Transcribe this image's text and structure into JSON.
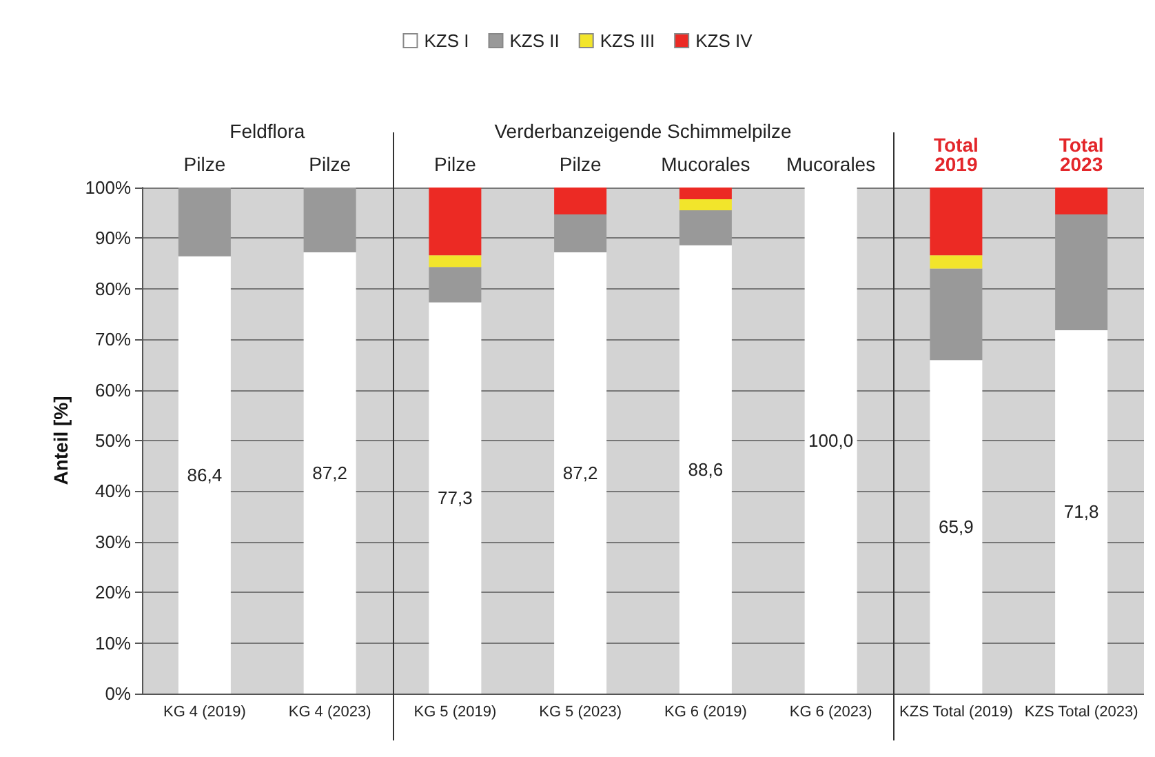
{
  "chart_data": {
    "type": "bar",
    "stacked": true,
    "categories": [
      "KG 4 (2019)",
      "KG 4 (2023)",
      "KG 5 (2019)",
      "KG 5 (2023)",
      "KG 6 (2019)",
      "KG 6 (2023)",
      "KZS Total (2019)",
      "KZS Total (2023)"
    ],
    "series": [
      {
        "name": "KZS I",
        "color": "#ffffff",
        "values": [
          86.4,
          87.2,
          77.3,
          87.2,
          88.6,
          100.0,
          65.9,
          71.8
        ],
        "value_labels": [
          "86,4",
          "87,2",
          "77,3",
          "87,2",
          "88,6",
          "100,0",
          "65,9",
          "71,8"
        ]
      },
      {
        "name": "KZS II",
        "color": "#999999",
        "values": [
          13.6,
          12.8,
          7.0,
          7.5,
          6.9,
          0,
          18.1,
          22.9
        ]
      },
      {
        "name": "KZS III",
        "color": "#f2e52b",
        "values": [
          0,
          0,
          2.3,
          0,
          2.2,
          0,
          2.6,
          0
        ]
      },
      {
        "name": "KZS IV",
        "color": "#ec2a24",
        "values": [
          0,
          0,
          13.4,
          5.3,
          2.3,
          0,
          13.4,
          5.3
        ]
      }
    ],
    "ylabel": "Anteil [%]",
    "ylim": [
      0,
      100
    ],
    "yticks": [
      {
        "value": 0,
        "label": "0%"
      },
      {
        "value": 10,
        "label": "10%"
      },
      {
        "value": 20,
        "label": "20%"
      },
      {
        "value": 30,
        "label": "30%"
      },
      {
        "value": 40,
        "label": "40%"
      },
      {
        "value": 50,
        "label": "50%"
      },
      {
        "value": 60,
        "label": "60%"
      },
      {
        "value": 70,
        "label": "70%"
      },
      {
        "value": 80,
        "label": "80%"
      },
      {
        "value": 90,
        "label": "90%"
      },
      {
        "value": 100,
        "label": "100%"
      }
    ],
    "grid": "y",
    "legend": "top",
    "annotations": [
      "Feldflora",
      "Verderbanzeigende Schimmelpilze",
      "Pilze",
      "Pilze",
      "Pilze",
      "Pilze",
      "Mucorales",
      "Mucorales",
      "Total\n2019",
      "Total\n2023"
    ]
  }
}
